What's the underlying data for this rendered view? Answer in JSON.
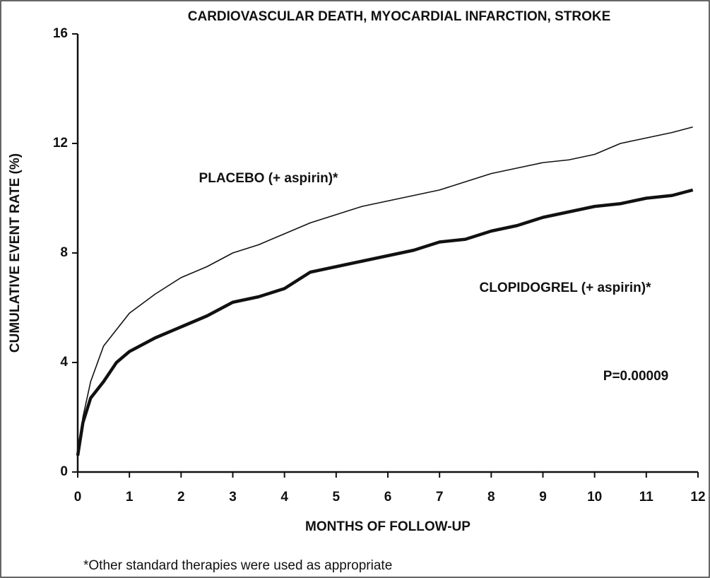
{
  "chart_data": {
    "type": "line",
    "title": "CARDIOVASCULAR DEATH, MYOCARDIAL INFARCTION, STROKE",
    "x_label": "MONTHS OF FOLLOW-UP",
    "y_label": "CUMULATIVE EVENT RATE (%)",
    "annotations": [
      "P=0.00009",
      "*Other standard therapies were used as appropriate"
    ],
    "x": [
      0,
      0.1,
      0.25,
      0.5,
      0.75,
      1,
      1.5,
      2,
      2.5,
      3,
      3.5,
      4,
      4.5,
      5,
      5.5,
      6,
      6.5,
      7,
      7.5,
      8,
      8.5,
      9,
      9.5,
      10,
      10.5,
      11,
      11.5,
      11.9
    ],
    "series": [
      {
        "name": "PLACEBO (+ aspirin)*",
        "color": "#111111",
        "values": [
          0.6,
          2.0,
          3.3,
          4.6,
          5.2,
          5.8,
          6.5,
          7.1,
          7.5,
          8.0,
          8.3,
          8.7,
          9.1,
          9.4,
          9.7,
          9.9,
          10.1,
          10.3,
          10.6,
          10.9,
          11.1,
          11.3,
          11.4,
          11.6,
          12.0,
          12.2,
          12.4,
          12.6
        ]
      },
      {
        "name": "CLOPIDOGREL (+ aspirin)*",
        "color": "#111111",
        "values": [
          0.6,
          1.8,
          2.7,
          3.3,
          4.0,
          4.4,
          4.9,
          5.3,
          5.7,
          6.2,
          6.4,
          6.7,
          7.3,
          7.5,
          7.7,
          7.9,
          8.1,
          8.4,
          8.5,
          8.8,
          9.0,
          9.3,
          9.5,
          9.7,
          9.8,
          10.0,
          10.1,
          10.3
        ]
      }
    ],
    "xlim": [
      0,
      12
    ],
    "ylim": [
      0,
      16
    ],
    "xticks": [
      0,
      1,
      2,
      3,
      4,
      5,
      6,
      7,
      8,
      9,
      10,
      11,
      12
    ],
    "yticks": [
      0,
      4,
      8,
      12,
      16
    ],
    "grid": false
  }
}
